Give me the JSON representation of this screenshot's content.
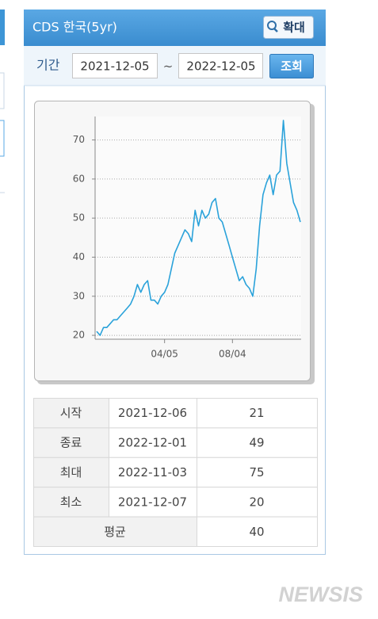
{
  "panel": {
    "title": "CDS 한국(5yr)",
    "zoom_button": "확대",
    "period_label": "기간",
    "start_date": "2021-12-05",
    "separator": "~",
    "end_date": "2022-12-05",
    "search_button": "조회"
  },
  "chart_data": {
    "type": "line",
    "color": "#2aa2da",
    "x": [
      null,
      null,
      null,
      null,
      null,
      null,
      null,
      null,
      null,
      null,
      null,
      null,
      null,
      null,
      null,
      null,
      null,
      null,
      null,
      null,
      "04/05",
      null,
      null,
      null,
      null,
      null,
      null,
      null,
      null,
      null,
      null,
      null,
      null,
      null,
      null,
      null,
      null,
      null,
      null,
      null,
      "08/04",
      null,
      null,
      null,
      null,
      null,
      null,
      null,
      null,
      null,
      null,
      null,
      null,
      null,
      null,
      null,
      null,
      null,
      null,
      null,
      null
    ],
    "values": [
      21,
      20,
      22,
      22,
      23,
      24,
      24,
      25,
      26,
      27,
      28,
      30,
      33,
      31,
      33,
      34,
      29,
      29,
      28,
      30,
      31,
      33,
      37,
      41,
      43,
      45,
      47,
      46,
      44,
      52,
      48,
      52,
      50,
      51,
      54,
      55,
      50,
      49,
      46,
      43,
      40,
      37,
      34,
      35,
      33,
      32,
      30,
      37,
      48,
      56,
      59,
      61,
      56,
      61,
      62,
      75,
      64,
      59,
      54,
      52,
      49
    ],
    "ylim": [
      19,
      76
    ],
    "yticks": [
      20,
      30,
      40,
      50,
      60,
      70
    ],
    "grid": true
  },
  "table": {
    "rows": [
      [
        "시작",
        "2021-12-06",
        21
      ],
      [
        "종료",
        "2022-12-01",
        49
      ],
      [
        "최대",
        "2022-11-03",
        75
      ],
      [
        "최소",
        "2021-12-07",
        20
      ],
      [
        "평균",
        40
      ]
    ]
  },
  "watermark": "NEWSIS"
}
